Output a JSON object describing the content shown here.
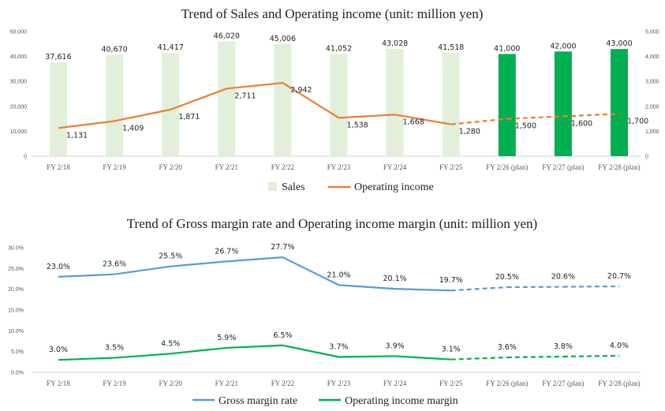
{
  "chart_data": [
    {
      "type": "bar",
      "title": "Trend of Sales and Operating income (unit: million yen)",
      "categories": [
        "FY 2/18",
        "FY 2/19",
        "FY 2/20",
        "FY 2/21",
        "FY 2/22",
        "FY 2/23",
        "FY 2/24",
        "FY 2/25",
        "FY 2/26 (plan)",
        "FY 2/27 (plan)",
        "FY 2/28 (plan)"
      ],
      "series": [
        {
          "name": "Sales",
          "type": "bar",
          "axis": "left",
          "values": [
            37616,
            40670,
            41417,
            46020,
            45006,
            41052,
            43028,
            41518,
            41000,
            42000,
            43000
          ],
          "labels": [
            "37,616",
            "40,670",
            "41,417",
            "46,020",
            "45,006",
            "41,052",
            "43,028",
            "41,518",
            "41,000",
            "42,000",
            "43,000"
          ],
          "color": "#e2efda",
          "plan_color": "#00b050"
        },
        {
          "name": "Operating income",
          "type": "line",
          "axis": "right",
          "values": [
            1131,
            1409,
            1871,
            2711,
            2942,
            1538,
            1668,
            1280,
            1500,
            1600,
            1700
          ],
          "labels": [
            "1,131",
            "1,409",
            "1,871",
            "2,711",
            "2,942",
            "1,538",
            "1,668",
            "1,280",
            "1,500",
            "1,600",
            "1,700"
          ],
          "color": "#ed7d31"
        }
      ],
      "plan_start_index": 8,
      "y_left": {
        "lim": [
          0,
          50000
        ],
        "ticks": [
          "0",
          "10,000",
          "20,000",
          "30,000",
          "40,000",
          "50,000"
        ]
      },
      "y_right": {
        "lim": [
          0,
          5000
        ],
        "ticks": [
          "0",
          "1,000",
          "2,000",
          "3,000",
          "4,000",
          "5,000"
        ]
      },
      "grid": false,
      "legend": "bottom"
    },
    {
      "type": "line",
      "title": "Trend of Gross margin rate and Operating income margin (unit: million yen)",
      "categories": [
        "FY 2/18",
        "FY 2/19",
        "FY 2/20",
        "FY 2/21",
        "FY 2/22",
        "FY 2/23",
        "FY 2/24",
        "FY 2/25",
        "FY 2/26 (plan)",
        "FY 2/27 (plan)",
        "FY 2/28 (plan)"
      ],
      "series": [
        {
          "name": "Gross margin rate",
          "values": [
            23.0,
            23.6,
            25.5,
            26.7,
            27.7,
            21.0,
            20.1,
            19.7,
            20.5,
            20.6,
            20.7
          ],
          "labels": [
            "23.0%",
            "23.6%",
            "25.5%",
            "26.7%",
            "27.7%",
            "21.0%",
            "20.1%",
            "19.7%",
            "20.5%",
            "20.6%",
            "20.7%"
          ],
          "color": "#5b9bd5"
        },
        {
          "name": "Operating income margin",
          "values": [
            3.0,
            3.5,
            4.5,
            5.9,
            6.5,
            3.7,
            3.9,
            3.1,
            3.6,
            3.8,
            4.0
          ],
          "labels": [
            "3.0%",
            "3.5%",
            "4.5%",
            "5.9%",
            "6.5%",
            "3.7%",
            "3.9%",
            "3.1%",
            "3.6%",
            "3.8%",
            "4.0%"
          ],
          "color": "#00b050"
        }
      ],
      "plan_start_index": 8,
      "ylim": [
        0,
        30
      ],
      "y_ticks": [
        "0.0%",
        "5.0%",
        "10.0%",
        "15.0%",
        "20.0%",
        "25.0%",
        "30.0%"
      ],
      "grid": false,
      "legend": "bottom"
    }
  ]
}
